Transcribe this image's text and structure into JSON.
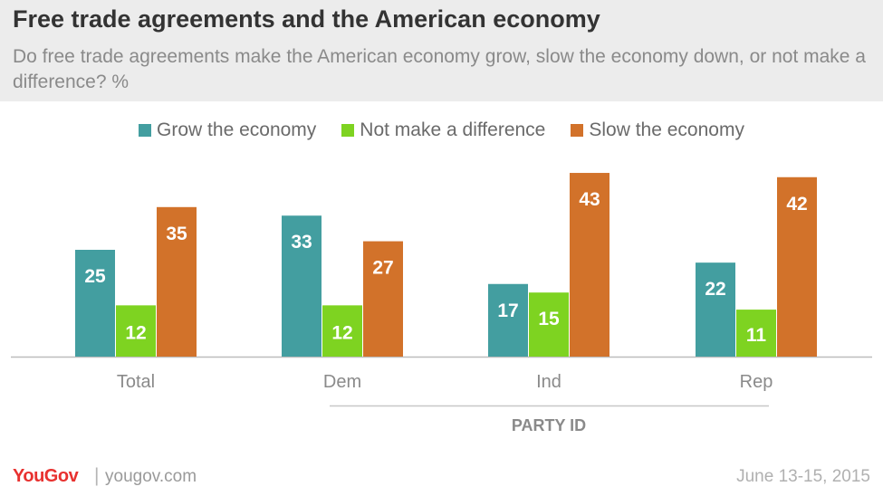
{
  "header": {
    "title": "Free trade agreements and the American economy",
    "subtitle": "Do free trade agreements make the American economy grow, slow the economy down, or not make a difference? %"
  },
  "footer": {
    "brand": "YouGov",
    "separator": "|",
    "site": "yougov.com",
    "date": "June 13-15, 2015"
  },
  "chart_data": {
    "type": "bar",
    "categories": [
      "Total",
      "Dem",
      "Ind",
      "Rep"
    ],
    "series": [
      {
        "name": "Grow the economy",
        "color": "#439ea0",
        "values": [
          25,
          33,
          17,
          22
        ]
      },
      {
        "name": "Not make a difference",
        "color": "#7ed321",
        "values": [
          12,
          12,
          15,
          11
        ]
      },
      {
        "name": "Slow the economy",
        "color": "#d2722a",
        "values": [
          35,
          27,
          43,
          42
        ]
      }
    ],
    "group_label": "PARTY ID",
    "group_categories": [
      "Dem",
      "Ind",
      "Rep"
    ],
    "ylim": [
      0,
      45
    ],
    "grid": false,
    "legend_position": "top"
  }
}
